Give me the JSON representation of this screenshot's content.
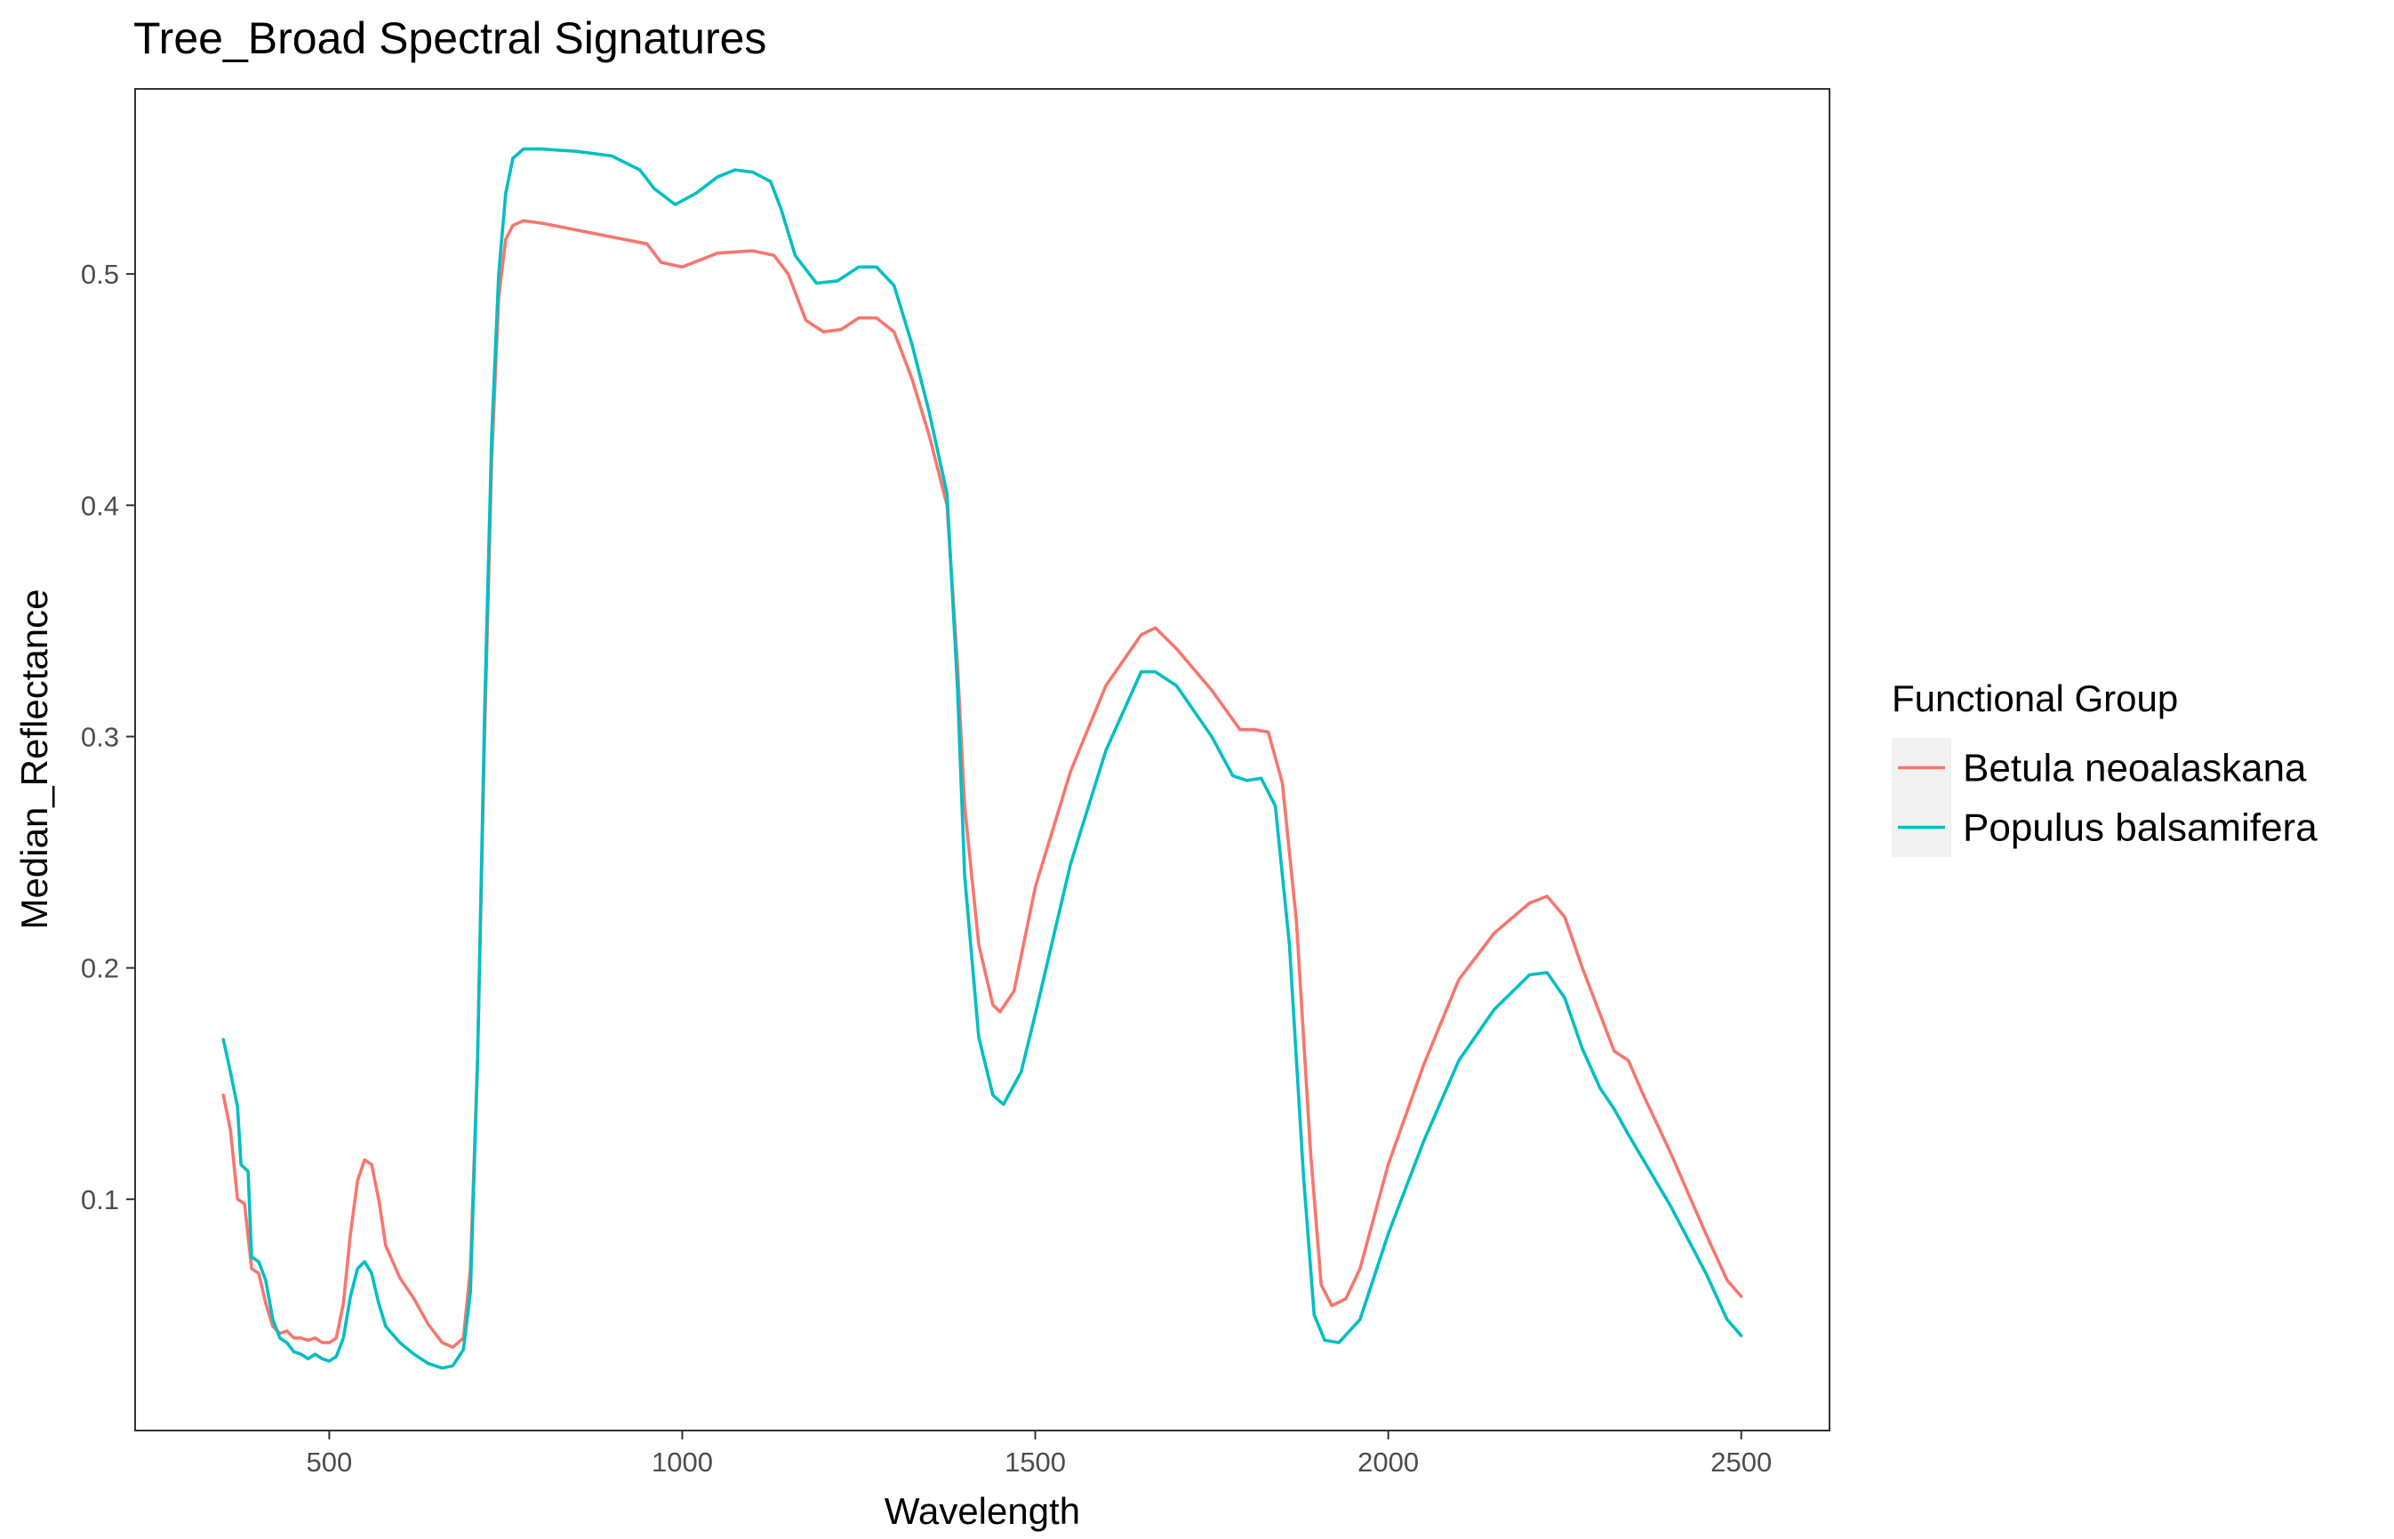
{
  "chart_data": {
    "type": "line",
    "title": "Tree_Broad Spectral Signatures",
    "xlabel": "Wavelength",
    "ylabel": "Median_Reflectance",
    "xlim": [
      225,
      2625
    ],
    "ylim": [
      0.0,
      0.58
    ],
    "x_ticks": [
      500,
      1000,
      1500,
      2000,
      2500
    ],
    "y_ticks": [
      0.1,
      0.2,
      0.3,
      0.4,
      0.5
    ],
    "x_tick_labels": [
      "500",
      "1000",
      "1500",
      "2000",
      "2500"
    ],
    "y_tick_labels": [
      "0.1",
      "0.2",
      "0.3",
      "0.4",
      "0.5"
    ],
    "grid": false,
    "legend": {
      "title": "Functional Group",
      "position": "right"
    },
    "series": [
      {
        "name": "Betula neoalaskana",
        "color": "#F8766D",
        "points": [
          [
            350,
            0.145
          ],
          [
            360,
            0.13
          ],
          [
            370,
            0.1
          ],
          [
            380,
            0.098
          ],
          [
            390,
            0.07
          ],
          [
            400,
            0.068
          ],
          [
            410,
            0.055
          ],
          [
            420,
            0.045
          ],
          [
            430,
            0.042
          ],
          [
            440,
            0.043
          ],
          [
            450,
            0.04
          ],
          [
            460,
            0.04
          ],
          [
            470,
            0.039
          ],
          [
            480,
            0.04
          ],
          [
            490,
            0.038
          ],
          [
            500,
            0.038
          ],
          [
            510,
            0.04
          ],
          [
            520,
            0.055
          ],
          [
            530,
            0.085
          ],
          [
            540,
            0.108
          ],
          [
            550,
            0.117
          ],
          [
            560,
            0.115
          ],
          [
            570,
            0.1
          ],
          [
            580,
            0.08
          ],
          [
            600,
            0.066
          ],
          [
            620,
            0.057
          ],
          [
            640,
            0.046
          ],
          [
            660,
            0.038
          ],
          [
            675,
            0.036
          ],
          [
            690,
            0.04
          ],
          [
            700,
            0.07
          ],
          [
            710,
            0.16
          ],
          [
            720,
            0.3
          ],
          [
            730,
            0.42
          ],
          [
            740,
            0.49
          ],
          [
            750,
            0.515
          ],
          [
            760,
            0.521
          ],
          [
            775,
            0.523
          ],
          [
            800,
            0.522
          ],
          [
            850,
            0.519
          ],
          [
            900,
            0.516
          ],
          [
            950,
            0.513
          ],
          [
            970,
            0.505
          ],
          [
            1000,
            0.503
          ],
          [
            1050,
            0.509
          ],
          [
            1100,
            0.51
          ],
          [
            1130,
            0.508
          ],
          [
            1150,
            0.5
          ],
          [
            1175,
            0.48
          ],
          [
            1200,
            0.475
          ],
          [
            1225,
            0.476
          ],
          [
            1250,
            0.481
          ],
          [
            1275,
            0.481
          ],
          [
            1300,
            0.475
          ],
          [
            1325,
            0.455
          ],
          [
            1350,
            0.43
          ],
          [
            1375,
            0.4
          ],
          [
            1390,
            0.33
          ],
          [
            1400,
            0.27
          ],
          [
            1420,
            0.21
          ],
          [
            1440,
            0.184
          ],
          [
            1450,
            0.181
          ],
          [
            1470,
            0.19
          ],
          [
            1500,
            0.235
          ],
          [
            1550,
            0.285
          ],
          [
            1600,
            0.322
          ],
          [
            1650,
            0.344
          ],
          [
            1670,
            0.347
          ],
          [
            1700,
            0.338
          ],
          [
            1750,
            0.32
          ],
          [
            1790,
            0.303
          ],
          [
            1810,
            0.303
          ],
          [
            1830,
            0.302
          ],
          [
            1850,
            0.28
          ],
          [
            1870,
            0.22
          ],
          [
            1890,
            0.12
          ],
          [
            1905,
            0.063
          ],
          [
            1920,
            0.054
          ],
          [
            1940,
            0.057
          ],
          [
            1960,
            0.07
          ],
          [
            2000,
            0.115
          ],
          [
            2050,
            0.158
          ],
          [
            2100,
            0.195
          ],
          [
            2150,
            0.215
          ],
          [
            2200,
            0.228
          ],
          [
            2225,
            0.231
          ],
          [
            2250,
            0.222
          ],
          [
            2275,
            0.2
          ],
          [
            2300,
            0.18
          ],
          [
            2320,
            0.164
          ],
          [
            2340,
            0.16
          ],
          [
            2360,
            0.146
          ],
          [
            2400,
            0.12
          ],
          [
            2450,
            0.085
          ],
          [
            2480,
            0.065
          ],
          [
            2500,
            0.058
          ]
        ]
      },
      {
        "name": "Populus balsamifera",
        "color": "#00BFC4",
        "points": [
          [
            350,
            0.169
          ],
          [
            360,
            0.155
          ],
          [
            370,
            0.14
          ],
          [
            375,
            0.115
          ],
          [
            385,
            0.112
          ],
          [
            390,
            0.075
          ],
          [
            400,
            0.073
          ],
          [
            410,
            0.065
          ],
          [
            420,
            0.048
          ],
          [
            430,
            0.04
          ],
          [
            440,
            0.038
          ],
          [
            450,
            0.034
          ],
          [
            460,
            0.033
          ],
          [
            470,
            0.031
          ],
          [
            480,
            0.033
          ],
          [
            490,
            0.031
          ],
          [
            500,
            0.03
          ],
          [
            510,
            0.032
          ],
          [
            520,
            0.04
          ],
          [
            530,
            0.058
          ],
          [
            540,
            0.07
          ],
          [
            550,
            0.073
          ],
          [
            560,
            0.068
          ],
          [
            570,
            0.055
          ],
          [
            580,
            0.045
          ],
          [
            600,
            0.038
          ],
          [
            620,
            0.033
          ],
          [
            640,
            0.029
          ],
          [
            660,
            0.027
          ],
          [
            675,
            0.028
          ],
          [
            690,
            0.035
          ],
          [
            700,
            0.06
          ],
          [
            710,
            0.16
          ],
          [
            720,
            0.31
          ],
          [
            730,
            0.43
          ],
          [
            740,
            0.5
          ],
          [
            750,
            0.535
          ],
          [
            760,
            0.55
          ],
          [
            775,
            0.554
          ],
          [
            800,
            0.554
          ],
          [
            850,
            0.553
          ],
          [
            900,
            0.551
          ],
          [
            940,
            0.545
          ],
          [
            960,
            0.537
          ],
          [
            990,
            0.53
          ],
          [
            1020,
            0.535
          ],
          [
            1050,
            0.542
          ],
          [
            1075,
            0.545
          ],
          [
            1100,
            0.544
          ],
          [
            1125,
            0.54
          ],
          [
            1140,
            0.528
          ],
          [
            1160,
            0.508
          ],
          [
            1190,
            0.496
          ],
          [
            1220,
            0.497
          ],
          [
            1250,
            0.503
          ],
          [
            1275,
            0.503
          ],
          [
            1300,
            0.495
          ],
          [
            1325,
            0.47
          ],
          [
            1350,
            0.44
          ],
          [
            1375,
            0.405
          ],
          [
            1390,
            0.32
          ],
          [
            1400,
            0.24
          ],
          [
            1420,
            0.17
          ],
          [
            1440,
            0.145
          ],
          [
            1455,
            0.141
          ],
          [
            1480,
            0.155
          ],
          [
            1500,
            0.18
          ],
          [
            1550,
            0.245
          ],
          [
            1600,
            0.294
          ],
          [
            1650,
            0.328
          ],
          [
            1670,
            0.328
          ],
          [
            1700,
            0.322
          ],
          [
            1750,
            0.3
          ],
          [
            1780,
            0.283
          ],
          [
            1800,
            0.281
          ],
          [
            1820,
            0.282
          ],
          [
            1840,
            0.27
          ],
          [
            1860,
            0.21
          ],
          [
            1880,
            0.11
          ],
          [
            1895,
            0.05
          ],
          [
            1910,
            0.039
          ],
          [
            1930,
            0.038
          ],
          [
            1960,
            0.048
          ],
          [
            2000,
            0.085
          ],
          [
            2050,
            0.125
          ],
          [
            2100,
            0.16
          ],
          [
            2150,
            0.182
          ],
          [
            2200,
            0.197
          ],
          [
            2225,
            0.198
          ],
          [
            2250,
            0.187
          ],
          [
            2275,
            0.165
          ],
          [
            2300,
            0.148
          ],
          [
            2320,
            0.139
          ],
          [
            2340,
            0.128
          ],
          [
            2400,
            0.097
          ],
          [
            2450,
            0.068
          ],
          [
            2480,
            0.048
          ],
          [
            2500,
            0.041
          ]
        ]
      }
    ]
  }
}
